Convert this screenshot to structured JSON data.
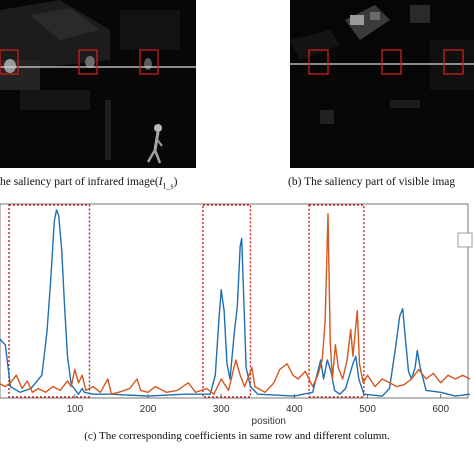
{
  "captions": {
    "a": "he saliency part of infrared image(",
    "a_symbol": "I",
    "a_sub": "1_s",
    "a_close": ")",
    "b": "(b) The saliency part of visible imag",
    "c": "(c) The corresponding coefficients in same row and different column."
  },
  "colors": {
    "series_1": "#1f6fb2",
    "series_2": "#d2581f",
    "highlight_box": "#c81e1e",
    "scanline": "#d9d9d9"
  },
  "chart_data": {
    "type": "line",
    "xlabel": "position",
    "ylabel": "",
    "xlim": [
      -5,
      640
    ],
    "x_ticks": [
      100,
      200,
      300,
      400,
      500,
      600
    ],
    "highlight_ranges": [
      [
        10,
        120
      ],
      [
        275,
        340
      ],
      [
        420,
        495
      ]
    ],
    "series": [
      {
        "color": "#1f6fb2",
        "points": [
          [
            -5,
            0.32
          ],
          [
            5,
            0.28
          ],
          [
            12,
            0.06
          ],
          [
            25,
            0.03
          ],
          [
            40,
            0.05
          ],
          [
            55,
            0.12
          ],
          [
            62,
            0.35
          ],
          [
            67,
            0.62
          ],
          [
            72,
            0.93
          ],
          [
            75,
            0.99
          ],
          [
            78,
            0.96
          ],
          [
            82,
            0.78
          ],
          [
            86,
            0.48
          ],
          [
            90,
            0.22
          ],
          [
            95,
            0.07
          ],
          [
            105,
            0.02
          ],
          [
            110,
            0.05
          ],
          [
            113,
            0.03
          ],
          [
            125,
            0.02
          ],
          [
            150,
            0.02
          ],
          [
            200,
            0.01
          ],
          [
            250,
            0.02
          ],
          [
            285,
            0.02
          ],
          [
            292,
            0.12
          ],
          [
            297,
            0.42
          ],
          [
            300,
            0.57
          ],
          [
            304,
            0.46
          ],
          [
            308,
            0.18
          ],
          [
            312,
            0.1
          ],
          [
            318,
            0.35
          ],
          [
            322,
            0.48
          ],
          [
            326,
            0.8
          ],
          [
            328,
            0.84
          ],
          [
            331,
            0.5
          ],
          [
            334,
            0.16
          ],
          [
            340,
            0.06
          ],
          [
            350,
            0.02
          ],
          [
            400,
            0.01
          ],
          [
            425,
            0.03
          ],
          [
            432,
            0.14
          ],
          [
            436,
            0.2
          ],
          [
            440,
            0.1
          ],
          [
            445,
            0.2
          ],
          [
            450,
            0.14
          ],
          [
            455,
            0.04
          ],
          [
            462,
            0.02
          ],
          [
            470,
            0.05
          ],
          [
            480,
            0.18
          ],
          [
            484,
            0.22
          ],
          [
            488,
            0.1
          ],
          [
            495,
            0.02
          ],
          [
            520,
            0.01
          ],
          [
            530,
            0.05
          ],
          [
            538,
            0.26
          ],
          [
            544,
            0.43
          ],
          [
            548,
            0.47
          ],
          [
            552,
            0.3
          ],
          [
            556,
            0.14
          ],
          [
            560,
            0.1
          ],
          [
            565,
            0.16
          ],
          [
            568,
            0.25
          ],
          [
            572,
            0.16
          ],
          [
            580,
            0.04
          ],
          [
            600,
            0.03
          ],
          [
            620,
            0.01
          ],
          [
            640,
            0.02
          ]
        ]
      },
      {
        "color": "#d2581f",
        "points": [
          [
            -5,
            0.08
          ],
          [
            5,
            0.06
          ],
          [
            12,
            0.08
          ],
          [
            20,
            0.12
          ],
          [
            28,
            0.05
          ],
          [
            35,
            0.09
          ],
          [
            42,
            0.03
          ],
          [
            50,
            0.05
          ],
          [
            60,
            0.03
          ],
          [
            70,
            0.06
          ],
          [
            80,
            0.04
          ],
          [
            90,
            0.09
          ],
          [
            95,
            0.06
          ],
          [
            100,
            0.15
          ],
          [
            105,
            0.08
          ],
          [
            110,
            0.12
          ],
          [
            115,
            0.04
          ],
          [
            125,
            0.06
          ],
          [
            135,
            0.03
          ],
          [
            145,
            0.1
          ],
          [
            150,
            0.02
          ],
          [
            160,
            0.03
          ],
          [
            175,
            0.05
          ],
          [
            185,
            0.1
          ],
          [
            190,
            0.04
          ],
          [
            200,
            0.03
          ],
          [
            210,
            0.06
          ],
          [
            225,
            0.03
          ],
          [
            240,
            0.04
          ],
          [
            255,
            0.08
          ],
          [
            265,
            0.03
          ],
          [
            280,
            0.05
          ],
          [
            290,
            0.02
          ],
          [
            300,
            0.1
          ],
          [
            310,
            0.04
          ],
          [
            320,
            0.2
          ],
          [
            326,
            0.12
          ],
          [
            332,
            0.06
          ],
          [
            342,
            0.16
          ],
          [
            346,
            0.06
          ],
          [
            360,
            0.03
          ],
          [
            372,
            0.08
          ],
          [
            380,
            0.15
          ],
          [
            390,
            0.18
          ],
          [
            398,
            0.12
          ],
          [
            405,
            0.1
          ],
          [
            415,
            0.14
          ],
          [
            425,
            0.06
          ],
          [
            432,
            0.12
          ],
          [
            438,
            0.2
          ],
          [
            442,
            0.4
          ],
          [
            446,
            0.97
          ],
          [
            449,
            0.3
          ],
          [
            452,
            0.1
          ],
          [
            456,
            0.28
          ],
          [
            460,
            0.16
          ],
          [
            466,
            0.1
          ],
          [
            472,
            0.2
          ],
          [
            477,
            0.36
          ],
          [
            480,
            0.22
          ],
          [
            486,
            0.46
          ],
          [
            489,
            0.18
          ],
          [
            494,
            0.08
          ],
          [
            500,
            0.12
          ],
          [
            510,
            0.06
          ],
          [
            520,
            0.1
          ],
          [
            530,
            0.08
          ],
          [
            540,
            0.06
          ],
          [
            550,
            0.07
          ],
          [
            560,
            0.1
          ],
          [
            570,
            0.15
          ],
          [
            580,
            0.1
          ],
          [
            590,
            0.13
          ],
          [
            600,
            0.08
          ],
          [
            610,
            0.12
          ],
          [
            620,
            0.1
          ],
          [
            630,
            0.12
          ],
          [
            640,
            0.1
          ]
        ]
      }
    ]
  }
}
